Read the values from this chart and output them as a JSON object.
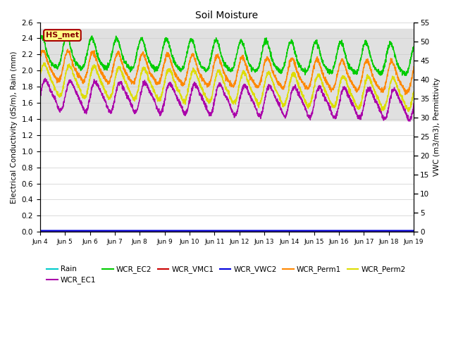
{
  "title": "Soil Moisture",
  "ylabel_left": "Electrical Conductivity (dS/m), Rain (mm)",
  "ylabel_right": "VWC (m3/m3), Permittivity",
  "ylim_left": [
    0.0,
    2.6
  ],
  "ylim_right": [
    0,
    55
  ],
  "yticks_left": [
    0.0,
    0.2,
    0.4,
    0.6,
    0.8,
    1.0,
    1.2,
    1.4,
    1.6,
    1.8,
    2.0,
    2.2,
    2.4,
    2.6
  ],
  "yticks_right": [
    0,
    5,
    10,
    15,
    20,
    25,
    30,
    35,
    40,
    45,
    50,
    55
  ],
  "xtick_labels": [
    "Jun 4",
    "Jun 5",
    "Jun 6",
    "Jun 7",
    "Jun 8",
    "Jun 9",
    "Jun 10",
    "Jun 11",
    "Jun 12",
    "Jun 13",
    "Jun 14",
    "Jun 15",
    "Jun 16",
    "Jun 17",
    "Jun 18",
    "Jun 19"
  ],
  "station_label": "HS_met",
  "background_color": "#ffffff",
  "shade_color": "#e0e0e0",
  "line_colors": {
    "Rain": "#00cccc",
    "WCR_EC1": "#aa00aa",
    "WCR_EC2": "#00cc00",
    "WCR_VMC1": "#cc0000",
    "WCR_VWC2": "#0000dd",
    "WCR_Perm1": "#ff8800",
    "WCR_Perm2": "#dddd00"
  }
}
